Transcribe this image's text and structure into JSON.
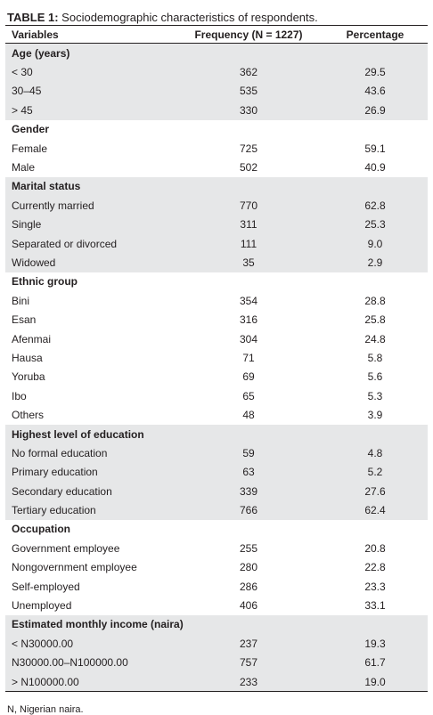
{
  "caption": {
    "label": "TABLE 1:",
    "text": "Sociodemographic characteristics of respondents."
  },
  "headers": {
    "variables": "Variables",
    "frequency": "Frequency (N = 1227)",
    "percentage": "Percentage"
  },
  "sections": [
    {
      "title": "Age (years)",
      "shaded": true,
      "rows": [
        {
          "label": "< 30",
          "freq": "362",
          "pct": "29.5"
        },
        {
          "label": "30–45",
          "freq": "535",
          "pct": "43.6"
        },
        {
          "label": "> 45",
          "freq": "330",
          "pct": "26.9"
        }
      ]
    },
    {
      "title": "Gender",
      "shaded": false,
      "rows": [
        {
          "label": "Female",
          "freq": "725",
          "pct": "59.1"
        },
        {
          "label": "Male",
          "freq": "502",
          "pct": "40.9"
        }
      ]
    },
    {
      "title": "Marital status",
      "shaded": true,
      "rows": [
        {
          "label": "Currently married",
          "freq": "770",
          "pct": "62.8"
        },
        {
          "label": "Single",
          "freq": "311",
          "pct": "25.3"
        },
        {
          "label": "Separated or divorced",
          "freq": "111",
          "pct": "9.0"
        },
        {
          "label": "Widowed",
          "freq": "35",
          "pct": "2.9"
        }
      ]
    },
    {
      "title": "Ethnic group",
      "shaded": false,
      "rows": [
        {
          "label": "Bini",
          "freq": "354",
          "pct": "28.8"
        },
        {
          "label": "Esan",
          "freq": "316",
          "pct": "25.8"
        },
        {
          "label": "Afenmai",
          "freq": "304",
          "pct": "24.8"
        },
        {
          "label": "Hausa",
          "freq": "71",
          "pct": "5.8"
        },
        {
          "label": "Yoruba",
          "freq": "69",
          "pct": "5.6"
        },
        {
          "label": "Ibo",
          "freq": "65",
          "pct": "5.3"
        },
        {
          "label": "Others",
          "freq": "48",
          "pct": "3.9"
        }
      ]
    },
    {
      "title": "Highest level of education",
      "shaded": true,
      "rows": [
        {
          "label": "No formal education",
          "freq": "59",
          "pct": "4.8"
        },
        {
          "label": "Primary education",
          "freq": "63",
          "pct": "5.2"
        },
        {
          "label": "Secondary education",
          "freq": "339",
          "pct": "27.6"
        },
        {
          "label": "Tertiary education",
          "freq": "766",
          "pct": "62.4"
        }
      ]
    },
    {
      "title": "Occupation",
      "shaded": false,
      "rows": [
        {
          "label": "Government employee",
          "freq": "255",
          "pct": "20.8"
        },
        {
          "label": "Nongovernment employee",
          "freq": "280",
          "pct": "22.8"
        },
        {
          "label": "Self-employed",
          "freq": "286",
          "pct": "23.3"
        },
        {
          "label": "Unemployed",
          "freq": "406",
          "pct": "33.1"
        }
      ]
    },
    {
      "title": "Estimated monthly income (naira)",
      "shaded": true,
      "rows": [
        {
          "label": "< N30000.00",
          "freq": "237",
          "pct": "19.3"
        },
        {
          "label": "N30000.00–N100000.00",
          "freq": "757",
          "pct": "61.7"
        },
        {
          "label": "> N100000.00",
          "freq": "233",
          "pct": "19.0"
        }
      ]
    }
  ],
  "footnote": "N, Nigerian naira.",
  "colors": {
    "shade": "#e6e7e8",
    "text": "#231f20"
  }
}
